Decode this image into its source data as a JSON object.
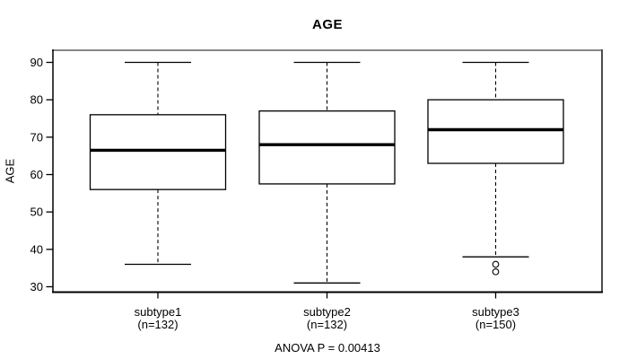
{
  "chart_data": {
    "type": "boxplot",
    "title": "AGE",
    "ylabel": "AGE",
    "xlabel": "",
    "annotation": "ANOVA P = 0.00413",
    "ylim": [
      28.6,
      92.4
    ],
    "yticks": [
      30,
      40,
      50,
      60,
      70,
      80,
      90
    ],
    "grid": false,
    "legend": false,
    "categories": [
      "subtype1",
      "subtype2",
      "subtype3"
    ],
    "category_sublabels": [
      "(n=132)",
      "(n=132)",
      "(n=150)"
    ],
    "series": [
      {
        "name": "subtype1",
        "n": 132,
        "whisker_low": 36,
        "q1": 56,
        "median": 66.5,
        "q3": 76,
        "whisker_high": 90,
        "outliers": []
      },
      {
        "name": "subtype2",
        "n": 132,
        "whisker_low": 31,
        "q1": 57.5,
        "median": 68,
        "q3": 77,
        "whisker_high": 90,
        "outliers": []
      },
      {
        "name": "subtype3",
        "n": 150,
        "whisker_low": 38,
        "q1": 63,
        "median": 72,
        "q3": 80,
        "whisker_high": 90,
        "outliers": [
          36,
          34
        ]
      }
    ],
    "colors": {
      "box_fill": "#ffffff",
      "box_border": "#000000",
      "median": "#000000",
      "whisker": "#000000",
      "frame_top": "#878787",
      "frame_right": "#4d4d4d",
      "frame_bottom": "#000000",
      "frame_left": "#000000",
      "background": "#ffffff"
    }
  }
}
